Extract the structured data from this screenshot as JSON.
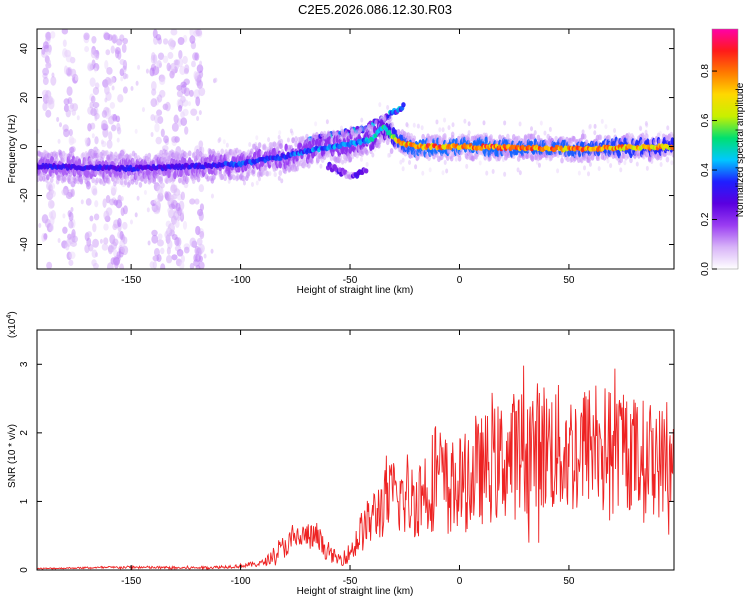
{
  "page_title": "C2E5.2026.086.12.30.R03",
  "colors": {
    "snr_line": "#ee2222",
    "axis": "#000000",
    "colormap": [
      "#ffffff",
      "#d8b4f8",
      "#9b3df2",
      "#5a00e0",
      "#1f1fff",
      "#00c8ff",
      "#00e070",
      "#c8f000",
      "#ffd800",
      "#ff7a00",
      "#ff1a1a",
      "#ff00a8"
    ]
  },
  "chart_data": [
    {
      "type": "heatmap",
      "title": "C2E5.2026.086.12.30.R03",
      "xlabel": "Height of straight line (km)",
      "ylabel": "Frequency (Hz)",
      "xlim": [
        -193,
        98
      ],
      "ylim": [
        -50,
        48
      ],
      "xticks": [
        -150,
        -100,
        -50,
        0,
        50
      ],
      "yticks": [
        -40,
        -20,
        0,
        20,
        40
      ],
      "xtick_labels": [
        "-150",
        "-100",
        "-50",
        "0",
        "50"
      ],
      "ytick_labels": [
        "-40",
        "-20",
        "0",
        "20",
        "40"
      ],
      "colorbar": {
        "label": "Normalized spectral amplitude",
        "range": [
          0,
          0.97
        ],
        "ticks": [
          0.0,
          0.2,
          0.4,
          0.6,
          0.8
        ],
        "tick_labels": [
          "0.0",
          "0.2",
          "0.4",
          "0.6",
          "0.8"
        ]
      },
      "ridge": {
        "description": "main Doppler ridge centre frequency vs height",
        "x": [
          -193,
          -150,
          -120,
          -100,
          -80,
          -65,
          -50,
          -40,
          -35,
          -28,
          -20,
          0,
          50,
          98
        ],
        "y": [
          -8,
          -9,
          -8,
          -7,
          -4,
          -1,
          1,
          3,
          8,
          2,
          0,
          0,
          -1,
          0
        ],
        "peak_amplitude": [
          0.35,
          0.35,
          0.35,
          0.4,
          0.4,
          0.45,
          0.45,
          0.5,
          0.55,
          0.85,
          0.9,
          0.9,
          0.88,
          0.8
        ]
      },
      "upper_branch": {
        "x": [
          -70,
          -55,
          -45,
          -40,
          -35,
          -30,
          -25
        ],
        "y": [
          2,
          5,
          7,
          9,
          11,
          14,
          17
        ]
      },
      "lower_branch": {
        "x": [
          -60,
          -50,
          -42
        ],
        "y": [
          -8,
          -12,
          -10
        ]
      },
      "noise_columns_km": [
        -188,
        -178,
        -168,
        -160,
        -155,
        -138,
        -132,
        -127,
        -120
      ]
    },
    {
      "type": "line",
      "xlabel": "Height of straight line (km)",
      "ylabel": "SNR (10 * v/v)",
      "yscale_label": "(x10",
      "yscale_exponent": "4",
      "xlim": [
        -193,
        98
      ],
      "ylim": [
        0,
        3.5
      ],
      "xticks": [
        -150,
        -100,
        -50,
        0,
        50
      ],
      "yticks": [
        0,
        1,
        2,
        3
      ],
      "xtick_labels": [
        "-150",
        "-100",
        "-50",
        "0",
        "50"
      ],
      "ytick_labels": [
        "0",
        "1",
        "2",
        "3"
      ],
      "series": [
        {
          "name": "SNR",
          "x": [
            -193,
            -175,
            -150,
            -125,
            -110,
            -100,
            -95,
            -90,
            -85,
            -80,
            -75,
            -70,
            -65,
            -60,
            -55,
            -50,
            -45,
            -40,
            -35,
            -30,
            -25,
            -20,
            -15,
            -10,
            -5,
            0,
            5,
            10,
            20,
            30,
            40,
            50,
            60,
            70,
            80,
            90,
            98
          ],
          "y": [
            0.02,
            0.03,
            0.04,
            0.03,
            0.04,
            0.06,
            0.08,
            0.1,
            0.2,
            0.35,
            0.45,
            0.5,
            0.45,
            0.25,
            0.15,
            0.25,
            0.55,
            0.75,
            0.95,
            1.1,
            1.0,
            1.05,
            1.2,
            1.4,
            1.2,
            1.25,
            1.3,
            1.45,
            1.6,
            1.75,
            1.8,
            1.7,
            1.85,
            1.8,
            1.7,
            1.6,
            1.55
          ],
          "spread": [
            0.01,
            0.01,
            0.02,
            0.02,
            0.02,
            0.03,
            0.04,
            0.05,
            0.1,
            0.18,
            0.2,
            0.2,
            0.2,
            0.12,
            0.1,
            0.15,
            0.3,
            0.4,
            0.5,
            0.55,
            0.55,
            0.6,
            0.7,
            0.8,
            0.7,
            0.7,
            0.75,
            0.8,
            0.9,
            1.0,
            1.0,
            0.95,
            0.9,
            0.9,
            0.85,
            0.85,
            0.8
          ]
        }
      ]
    }
  ]
}
